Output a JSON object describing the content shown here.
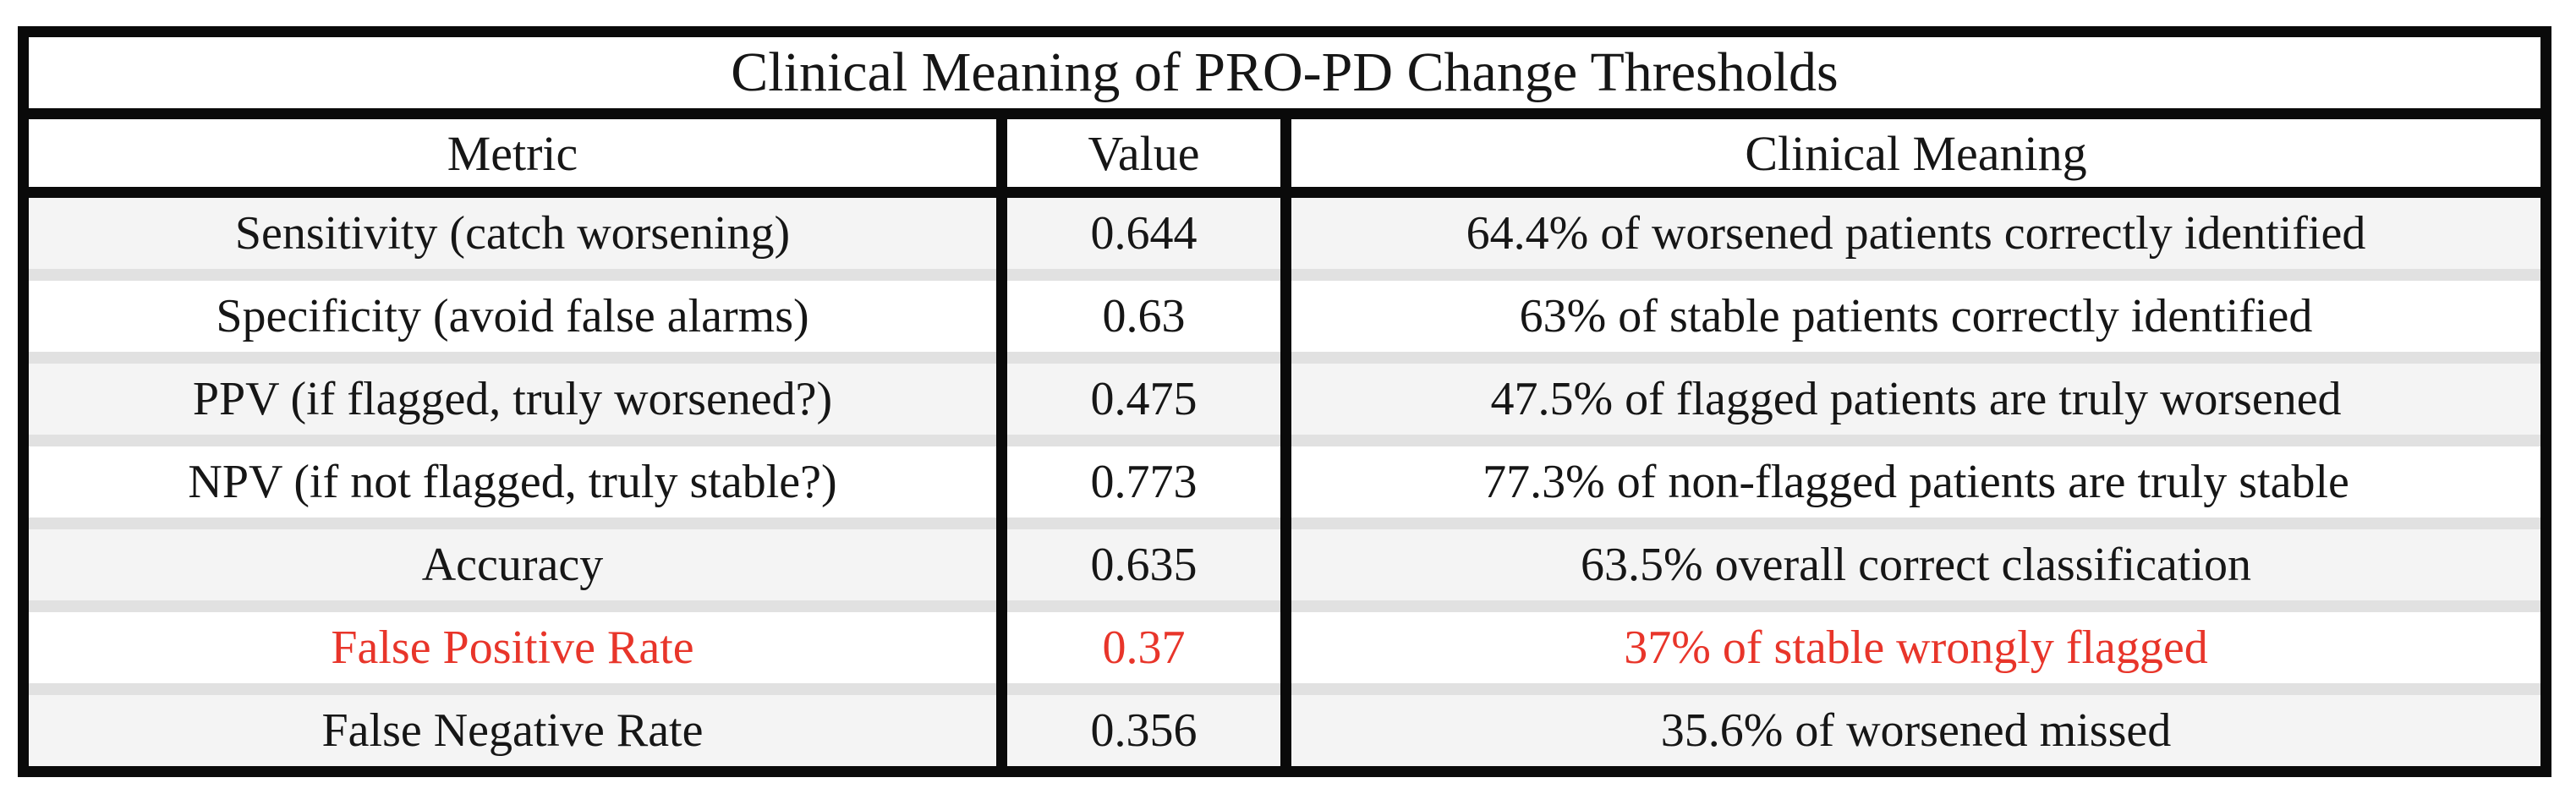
{
  "table": {
    "title": "Clinical Meaning of PRO-PD Change Thresholds",
    "columns": [
      "Metric",
      "Value",
      "Clinical Meaning"
    ],
    "rows": [
      {
        "metric": "Sensitivity (catch worsening)",
        "value": "0.644",
        "meaning": "64.4% of worsened patients correctly identified",
        "highlight": false
      },
      {
        "metric": "Specificity (avoid false alarms)",
        "value": "0.63",
        "meaning": "63% of stable patients correctly identified",
        "highlight": false
      },
      {
        "metric": "PPV (if flagged, truly worsened?)",
        "value": "0.475",
        "meaning": "47.5% of flagged patients are truly worsened",
        "highlight": false
      },
      {
        "metric": "NPV (if not flagged, truly stable?)",
        "value": "0.773",
        "meaning": "77.3% of non-flagged patients are truly stable",
        "highlight": false
      },
      {
        "metric": "Accuracy",
        "value": "0.635",
        "meaning": "63.5% overall correct classification",
        "highlight": false
      },
      {
        "metric": "False Positive Rate",
        "value": "0.37",
        "meaning": "37% of stable wrongly flagged",
        "highlight": true
      },
      {
        "metric": "False Negative Rate",
        "value": "0.356",
        "meaning": "35.6% of worsened missed",
        "highlight": false
      }
    ],
    "colors": {
      "border": "#0a0a0a",
      "highlight_text": "#e8352a",
      "row_alt_bg": "#f4f4f4",
      "row_bg": "#ffffff",
      "row_separator": "#e1e1e1"
    }
  },
  "chart_data": {
    "type": "table",
    "title": "Clinical Meaning of PRO-PD Change Thresholds",
    "columns": [
      "Metric",
      "Value",
      "Clinical Meaning"
    ],
    "rows": [
      [
        "Sensitivity (catch worsening)",
        0.644,
        "64.4% of worsened patients correctly identified"
      ],
      [
        "Specificity (avoid false alarms)",
        0.63,
        "63% of stable patients correctly identified"
      ],
      [
        "PPV (if flagged, truly worsened?)",
        0.475,
        "47.5% of flagged patients are truly worsened"
      ],
      [
        "NPV (if not flagged, truly stable?)",
        0.773,
        "77.3% of non-flagged patients are truly stable"
      ],
      [
        "Accuracy",
        0.635,
        "63.5% overall correct classification"
      ],
      [
        "False Positive Rate",
        0.37,
        "37% of stable wrongly flagged"
      ],
      [
        "False Negative Rate",
        0.356,
        "35.6% of worsened missed"
      ]
    ],
    "annotations": [
      "False Positive Rate row emphasized in red"
    ],
    "layout": {
      "striped_rows": true,
      "all_cells_centered": true
    }
  }
}
